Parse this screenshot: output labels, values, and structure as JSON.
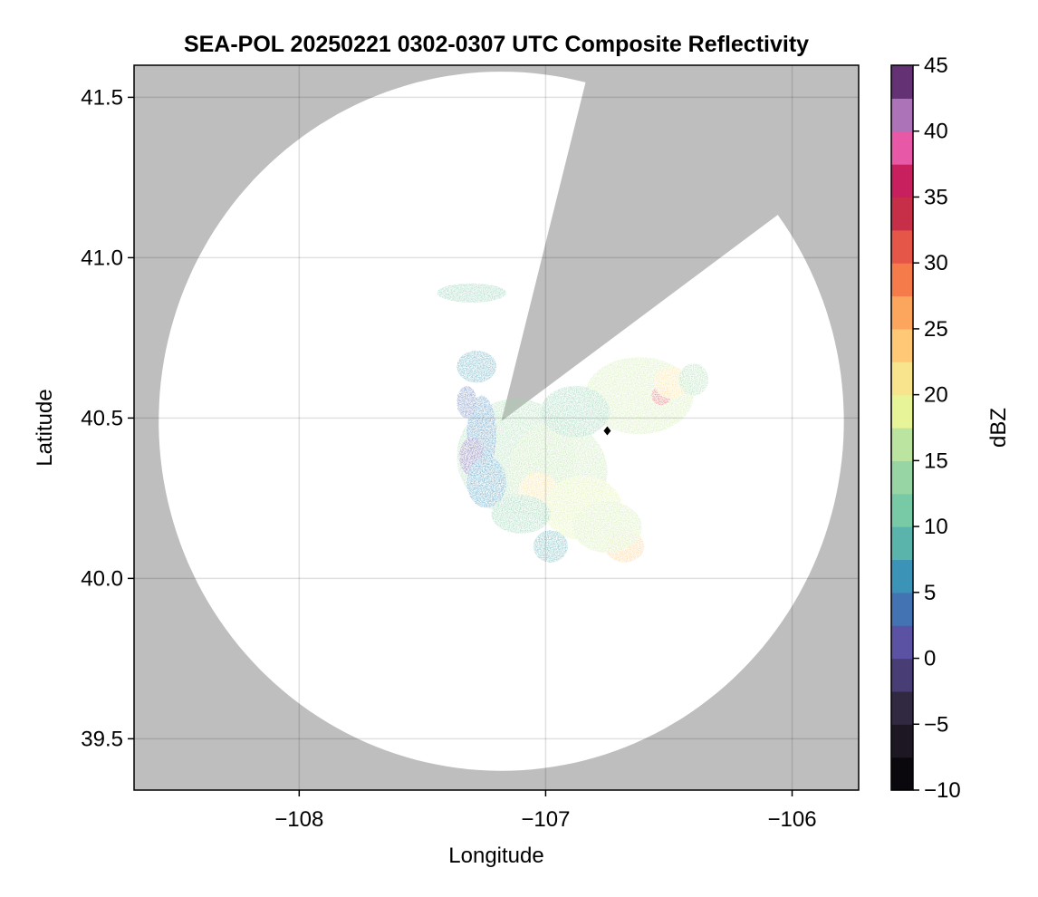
{
  "chart_data": {
    "type": "heatmap",
    "title": "SEA-POL 20250221 0302-0307 UTC Composite Reflectivity",
    "xlabel": "Longitude",
    "ylabel": "Latitude",
    "xlim": [
      -108.67,
      -105.73
    ],
    "ylim": [
      39.34,
      41.6
    ],
    "xticks": [
      -108,
      -107,
      -106
    ],
    "xtick_labels": [
      "−108",
      "−107",
      "−106"
    ],
    "yticks": [
      39.5,
      40.0,
      40.5,
      41.0,
      41.5
    ],
    "ytick_labels": [
      "39.5",
      "40.0",
      "40.5",
      "41.0",
      "41.5"
    ],
    "grid": true,
    "colormap": "spectral reversed, 22 discrete levels",
    "colorbar": {
      "label": "dBZ",
      "range": [
        -10,
        45
      ],
      "ticks": [
        -10,
        -5,
        0,
        5,
        10,
        15,
        20,
        25,
        30,
        35,
        40,
        45
      ],
      "tick_labels": [
        "−10",
        "−5",
        "0",
        "5",
        "10",
        "15",
        "20",
        "25",
        "30",
        "35",
        "40",
        "45"
      ]
    },
    "radar_site": {
      "lon": -107.18,
      "lat": 40.49
    },
    "coverage_edge_lon": -108.57,
    "coverage_top_lat": 41.58,
    "blocked_sector": [
      {
        "lon": -106.84,
        "lat": 41.52
      },
      {
        "lon": -106.06,
        "lat": 41.12
      }
    ],
    "marker": {
      "lon": -106.75,
      "lat": 40.46,
      "color": "#000000"
    },
    "reflectivity_cells": [
      {
        "lon": -107.12,
        "lat": 40.38,
        "dbz": 14,
        "spread_lon": 0.24,
        "spread_lat": 0.18
      },
      {
        "lon": -106.95,
        "lat": 40.33,
        "dbz": 16,
        "spread_lon": 0.2,
        "spread_lat": 0.16
      },
      {
        "lon": -107.03,
        "lat": 40.27,
        "dbz": 22,
        "spread_lon": 0.08,
        "spread_lat": 0.06
      },
      {
        "lon": -106.85,
        "lat": 40.22,
        "dbz": 18,
        "spread_lon": 0.16,
        "spread_lat": 0.1
      },
      {
        "lon": -106.68,
        "lat": 40.1,
        "dbz": 24,
        "spread_lon": 0.08,
        "spread_lat": 0.05
      },
      {
        "lon": -106.75,
        "lat": 40.16,
        "dbz": 17,
        "spread_lon": 0.14,
        "spread_lat": 0.08
      },
      {
        "lon": -106.62,
        "lat": 40.57,
        "dbz": 17,
        "spread_lon": 0.22,
        "spread_lat": 0.12
      },
      {
        "lon": -106.53,
        "lat": 40.57,
        "dbz": 32,
        "spread_lon": 0.04,
        "spread_lat": 0.03
      },
      {
        "lon": -106.49,
        "lat": 40.61,
        "dbz": 22,
        "spread_lon": 0.07,
        "spread_lat": 0.05
      },
      {
        "lon": -106.88,
        "lat": 40.52,
        "dbz": 12,
        "spread_lon": 0.14,
        "spread_lat": 0.08
      },
      {
        "lon": -107.26,
        "lat": 40.45,
        "dbz": 5,
        "spread_lon": 0.06,
        "spread_lat": 0.12
      },
      {
        "lon": -107.3,
        "lat": 40.38,
        "dbz": 1,
        "spread_lon": 0.05,
        "spread_lat": 0.06
      },
      {
        "lon": -107.24,
        "lat": 40.3,
        "dbz": 6,
        "spread_lon": 0.08,
        "spread_lat": 0.08
      },
      {
        "lon": -107.1,
        "lat": 40.2,
        "dbz": 12,
        "spread_lon": 0.12,
        "spread_lat": 0.06
      },
      {
        "lon": -107.28,
        "lat": 40.66,
        "dbz": 7,
        "spread_lon": 0.08,
        "spread_lat": 0.05
      },
      {
        "lon": -107.3,
        "lat": 40.89,
        "dbz": 11,
        "spread_lon": 0.14,
        "spread_lat": 0.03
      },
      {
        "lon": -107.32,
        "lat": 40.55,
        "dbz": 3,
        "spread_lon": 0.04,
        "spread_lat": 0.05
      },
      {
        "lon": -106.98,
        "lat": 40.1,
        "dbz": 8,
        "spread_lon": 0.07,
        "spread_lat": 0.05
      },
      {
        "lon": -106.4,
        "lat": 40.62,
        "dbz": 14,
        "spread_lon": 0.06,
        "spread_lat": 0.05
      }
    ]
  }
}
